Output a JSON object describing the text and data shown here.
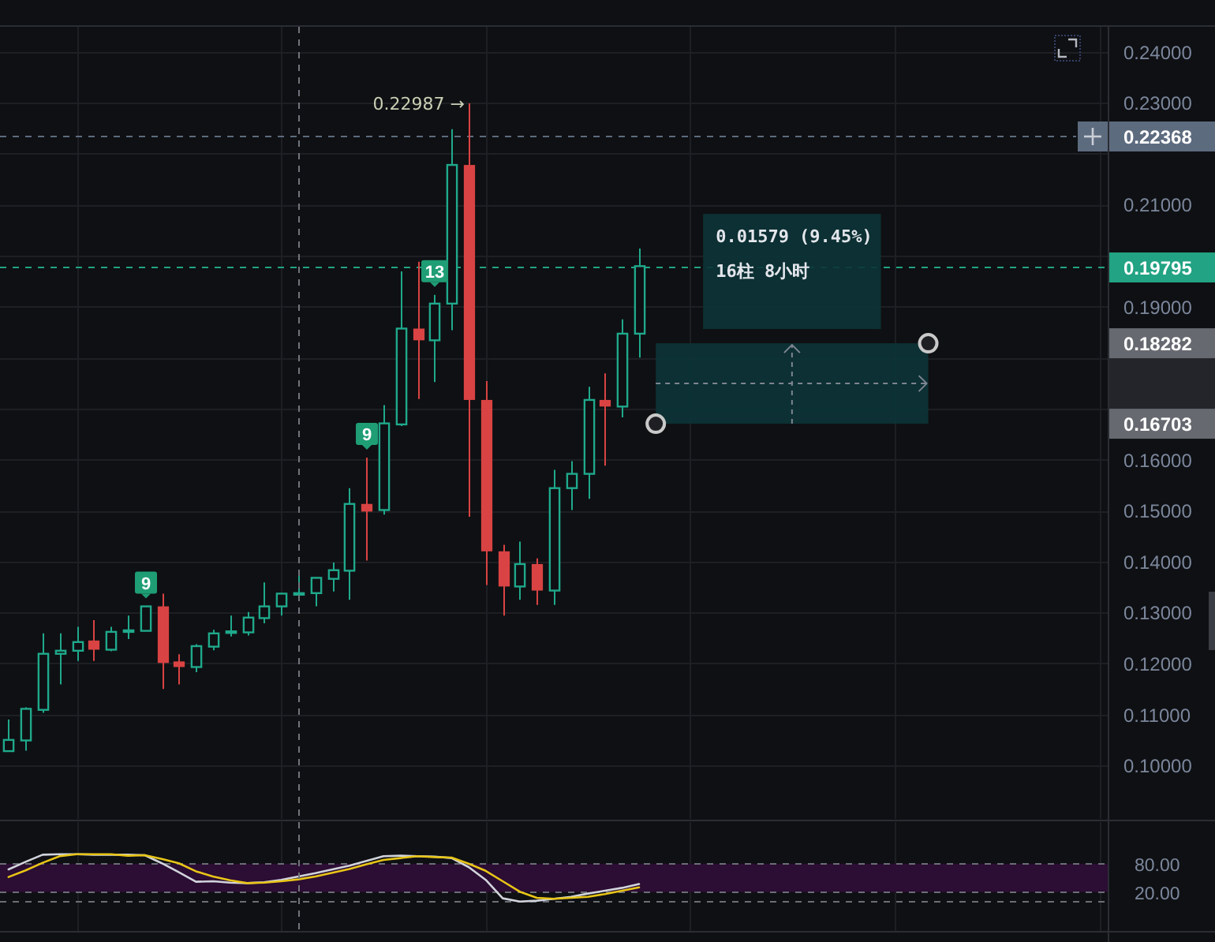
{
  "chart_data": [
    {
      "type": "candlestick",
      "categories": [
        null,
        null,
        null,
        null,
        null,
        null,
        null,
        null,
        null,
        null,
        null,
        null,
        null,
        null,
        null,
        null,
        null,
        null,
        null,
        null,
        null,
        null,
        null,
        null,
        null,
        null,
        null,
        null,
        null,
        null,
        null,
        null,
        null,
        null,
        null,
        null,
        null,
        null,
        null,
        null,
        null,
        null,
        null,
        null,
        null,
        null,
        null,
        null,
        null,
        null,
        null,
        null,
        null,
        null,
        null,
        null,
        null,
        null,
        null,
        null,
        null,
        null,
        null,
        null,
        null
      ],
      "ohlc": [
        [
          0.1028,
          0.109,
          0.1028,
          0.105
        ],
        [
          0.1049,
          0.1114,
          0.1029,
          0.1111
        ],
        [
          0.1109,
          0.1259,
          0.1103,
          0.1219
        ],
        [
          0.1219,
          0.1259,
          0.1159,
          0.1225
        ],
        [
          0.1225,
          0.1272,
          0.1205,
          0.1242
        ],
        [
          0.1245,
          0.1285,
          0.1205,
          0.1227
        ],
        [
          0.1227,
          0.1272,
          0.1224,
          0.1262
        ],
        [
          0.1262,
          0.1294,
          0.1248,
          0.1265
        ],
        [
          0.1264,
          0.1312,
          0.1264,
          0.1312
        ],
        [
          0.1312,
          0.1337,
          0.115,
          0.1201
        ],
        [
          0.1204,
          0.1218,
          0.1159,
          0.1193
        ],
        [
          0.1193,
          0.1238,
          0.1183,
          0.1234
        ],
        [
          0.1233,
          0.1266,
          0.1226,
          0.1259
        ],
        [
          0.1261,
          0.1294,
          0.1253,
          0.1263
        ],
        [
          0.1261,
          0.1301,
          0.1255,
          0.129
        ],
        [
          0.1289,
          0.1359,
          0.1279,
          0.1312
        ],
        [
          0.1312,
          0.1338,
          0.1294,
          0.1337
        ],
        [
          0.1337,
          0.1374,
          0.1329,
          0.1338
        ],
        [
          0.1338,
          0.1369,
          0.1312,
          0.1368
        ],
        [
          0.1366,
          0.1398,
          0.1341,
          0.1383
        ],
        [
          0.1382,
          0.1544,
          0.1325,
          0.1513
        ],
        [
          0.1513,
          0.1604,
          0.1402,
          0.1498
        ],
        [
          0.1501,
          0.1707,
          0.1492,
          0.1671
        ],
        [
          0.1669,
          0.1969,
          0.1666,
          0.1857
        ],
        [
          0.1857,
          0.1988,
          0.1719,
          0.1834
        ],
        [
          0.1834,
          0.1923,
          0.1752,
          0.1906
        ],
        [
          0.1906,
          0.2248,
          0.1854,
          0.2178
        ],
        [
          0.2178,
          0.22987,
          0.1488,
          0.1717
        ],
        [
          0.1717,
          0.1754,
          0.1354,
          0.142
        ],
        [
          0.142,
          0.1433,
          0.1294,
          0.1351
        ],
        [
          0.1351,
          0.1439,
          0.1325,
          0.1395
        ],
        [
          0.1395,
          0.1406,
          0.1315,
          0.1343
        ],
        [
          0.1343,
          0.158,
          0.1315,
          0.1544
        ],
        [
          0.1544,
          0.1597,
          0.1501,
          0.1572
        ],
        [
          0.1572,
          0.1743,
          0.1523,
          0.1717
        ],
        [
          0.1717,
          0.1769,
          0.1588,
          0.1704
        ],
        [
          0.1704,
          0.1875,
          0.1683,
          0.1847
        ],
        [
          0.1847,
          0.2014,
          0.18,
          0.19795
        ],
        null,
        null,
        null,
        null,
        null,
        null,
        null,
        null,
        null,
        null,
        null,
        null,
        null,
        null,
        null,
        null,
        null,
        null,
        null,
        null,
        null,
        null,
        null,
        null,
        null,
        null,
        null
      ],
      "colors": [
        "#1fa98c",
        "#1fa98c",
        "#1fa98c",
        "#1fa98c",
        "#1fa98c",
        "#d94343",
        "#1fa98c",
        "#1fa98c",
        "#1fa98c",
        "#d94343",
        "#d94343",
        "#1fa98c",
        "#1fa98c",
        "#1fa98c",
        "#1fa98c",
        "#1fa98c",
        "#1fa98c",
        "#1fa98c",
        "#1fa98c",
        "#1fa98c",
        "#1fa98c",
        "#d94343",
        "#1fa98c",
        "#1fa98c",
        "#d94343",
        "#1fa98c",
        "#1fa98c",
        "#d94343",
        "#d94343",
        "#d94343",
        "#1fa98c",
        "#d94343",
        "#1fa98c",
        "#1fa98c",
        "#1fa98c",
        "#d94343",
        "#1fa98c",
        "#1fa98c",
        null,
        null,
        null,
        null,
        null,
        null,
        null,
        null,
        null,
        null,
        null,
        null,
        null,
        null,
        null,
        null,
        null,
        null,
        null,
        null,
        null,
        null,
        null,
        null,
        null,
        null,
        null
      ],
      "value_labels": [
        null,
        null,
        null,
        null,
        null,
        null,
        null,
        null,
        "9",
        null,
        null,
        null,
        null,
        null,
        null,
        null,
        null,
        null,
        null,
        null,
        null,
        "9",
        null,
        null,
        null,
        "13",
        null,
        "0.22987 →",
        null,
        null,
        null,
        null,
        null,
        null,
        null,
        null,
        null,
        null,
        null,
        null,
        null,
        null,
        null,
        null,
        null,
        null,
        null,
        null,
        null,
        null,
        null,
        null,
        null,
        null,
        null,
        null,
        null,
        null,
        null,
        null,
        null,
        null,
        null,
        null,
        null
      ],
      "ylim": [
        0.0895,
        0.2449
      ],
      "yticks": [
        {
          "value": 0.1,
          "label": "0.10000"
        },
        {
          "value": 0.11,
          "label": "0.11000"
        },
        {
          "value": 0.12,
          "label": "0.12000"
        },
        {
          "value": 0.13,
          "label": "0.13000"
        },
        {
          "value": 0.14,
          "label": "0.14000"
        },
        {
          "value": 0.15,
          "label": "0.15000"
        },
        {
          "value": 0.16,
          "label": "0.16000"
        },
        {
          "value": 0.17,
          "label": null
        },
        {
          "value": 0.18,
          "label": null
        },
        {
          "value": 0.19,
          "label": "0.19000"
        },
        {
          "value": 0.2,
          "label": null
        },
        {
          "value": 0.21,
          "label": "0.21000"
        },
        {
          "value": 0.22,
          "label": null
        },
        {
          "value": 0.23,
          "label": "0.23000"
        },
        {
          "value": 0.24,
          "label": "0.24000"
        }
      ],
      "grid": true,
      "tick_labels": "y",
      "ref_lines": [
        {
          "axis": "y",
          "value": 0.22368,
          "label": "0.22368",
          "color": "#5d6b7f",
          "line_style": "dashed"
        },
        {
          "axis": "y",
          "value": 0.19795,
          "label": "0.19795",
          "color": "#22a383",
          "line_style": "dashed"
        }
      ],
      "bands": [
        {
          "axis": "y",
          "from": 0.16703,
          "to": 0.18282,
          "color": "#0c3437"
        }
      ],
      "annotations": [
        "0.01579 (9.45%)",
        "16柱 8小时",
        "0.18282",
        "0.16703"
      ]
    },
    {
      "type": "line",
      "categories": [
        null,
        null,
        null,
        null,
        null,
        null,
        null,
        null,
        null,
        null,
        null,
        null,
        null,
        null,
        null,
        null,
        null,
        null,
        null,
        null,
        null,
        null,
        null,
        null,
        null,
        null,
        null,
        null,
        null,
        null,
        null,
        null,
        null,
        null,
        null,
        null,
        null,
        null,
        null,
        null,
        null,
        null,
        null,
        null,
        null,
        null,
        null,
        null,
        null,
        null,
        null,
        null,
        null,
        null,
        null,
        null,
        null,
        null,
        null,
        null,
        null,
        null,
        null,
        null,
        null
      ],
      "series": [
        {
          "color": "#d1d4dc",
          "values": [
            68,
            84,
            99,
            100,
            100,
            99,
            99,
            99,
            98,
            81,
            62,
            42,
            43,
            40,
            39,
            41,
            46,
            53,
            60,
            68,
            76,
            86,
            96,
            97,
            96,
            95,
            92,
            73,
            46,
            7,
            0,
            2,
            6,
            10,
            17,
            23,
            29,
            37,
            null,
            null,
            null,
            null,
            null,
            null,
            null,
            null,
            null,
            null,
            null,
            null,
            null,
            null,
            null,
            null,
            null,
            null,
            null,
            null,
            null,
            null,
            null,
            null,
            null,
            null,
            null
          ]
        },
        {
          "color": "#e8c517",
          "values": [
            52,
            66,
            82,
            96,
            100,
            100,
            100,
            97,
            98,
            90,
            81,
            64,
            53,
            45,
            39,
            40,
            43,
            47,
            53,
            61,
            69,
            79,
            88,
            92,
            96,
            94,
            93,
            80,
            65,
            43,
            21,
            8,
            6,
            8,
            10,
            16,
            23,
            30,
            null,
            null,
            null,
            null,
            null,
            null,
            null,
            null,
            null,
            null,
            null,
            null,
            null,
            null,
            null,
            null,
            null,
            null,
            null,
            null,
            null,
            null,
            null,
            null,
            null,
            null,
            null
          ]
        }
      ],
      "ylim": [
        -62,
        168
      ],
      "yticks": [
        {
          "value": 80,
          "label": "80.00"
        },
        {
          "value": 20,
          "label": "20.00"
        }
      ],
      "grid": "x",
      "tick_labels": "y",
      "bands": [
        {
          "axis": "y",
          "from": 20,
          "to": 80,
          "color": "#2c0d33"
        }
      ],
      "ref_lines": [
        {
          "axis": "y",
          "value": 80,
          "color": "#6b6e76",
          "line_style": "dashed"
        },
        {
          "axis": "y",
          "value": 20,
          "color": "#6b6e76",
          "line_style": "dashed"
        },
        {
          "axis": "y",
          "value": 0,
          "color": "#6b6e76",
          "line_style": "dashed"
        }
      ]
    }
  ]
}
